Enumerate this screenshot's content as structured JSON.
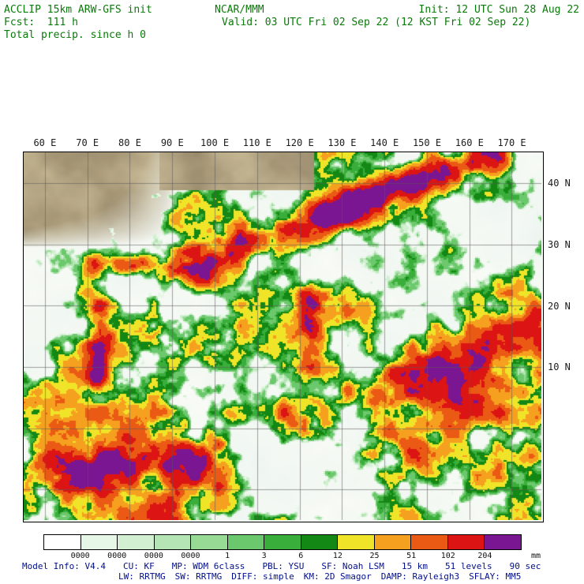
{
  "header": {
    "model_title": "ACCLIP 15km ARW-GFS init",
    "fcst": "Fcst:  111 h",
    "field": "Total precip. since h 0",
    "org": "NCAR/MMM",
    "valid": "Valid: 03 UTC Fri 02 Sep 22 (12 KST Fri 02 Sep 22)",
    "init": "Init: 12 UTC Sun 28 Aug 22"
  },
  "map": {
    "lon_ticks": [
      "60 E",
      "70 E",
      "80 E",
      "90 E",
      "100 E",
      "110 E",
      "120 E",
      "130 E",
      "140 E",
      "150 E",
      "160 E",
      "170 E"
    ],
    "lat_ticks": [
      "40 N",
      "30 N",
      "20 N",
      "10 N"
    ],
    "thresholds": [
      0.1,
      0.25,
      0.5,
      0.75,
      1,
      3,
      6,
      12,
      25,
      51,
      102,
      204
    ],
    "land_color": "#cdbd92",
    "ocean_color": "#f2f9f4",
    "grid_color": "rgba(90,90,90,0.55)"
  },
  "colorbar": {
    "colors": [
      "#ffffff",
      "#e7f7e7",
      "#d2efd2",
      "#b5e5b5",
      "#96da96",
      "#6cc86c",
      "#3aae3a",
      "#148814",
      "#f0e428",
      "#f5a01e",
      "#eb5a14",
      "#dc1414",
      "#7a1691"
    ],
    "labels": [
      "0000",
      "0000",
      "0000",
      "0000",
      "1",
      "3",
      "6",
      "12",
      "25",
      "51",
      "102",
      "204"
    ],
    "unit": "mm"
  },
  "footer": {
    "line1": [
      "Model Info: V4.4",
      "CU: KF",
      "MP: WDM 6class",
      "PBL: YSU",
      "SF: Noah LSM",
      "15 km",
      "51 levels",
      "90 sec"
    ],
    "line2": [
      "LW: RRTMG",
      "SW: RRTMG",
      "DIFF: simple",
      "KM: 2D Smagor",
      "DAMP: Rayleigh3",
      "SFLAY: MM5"
    ]
  }
}
